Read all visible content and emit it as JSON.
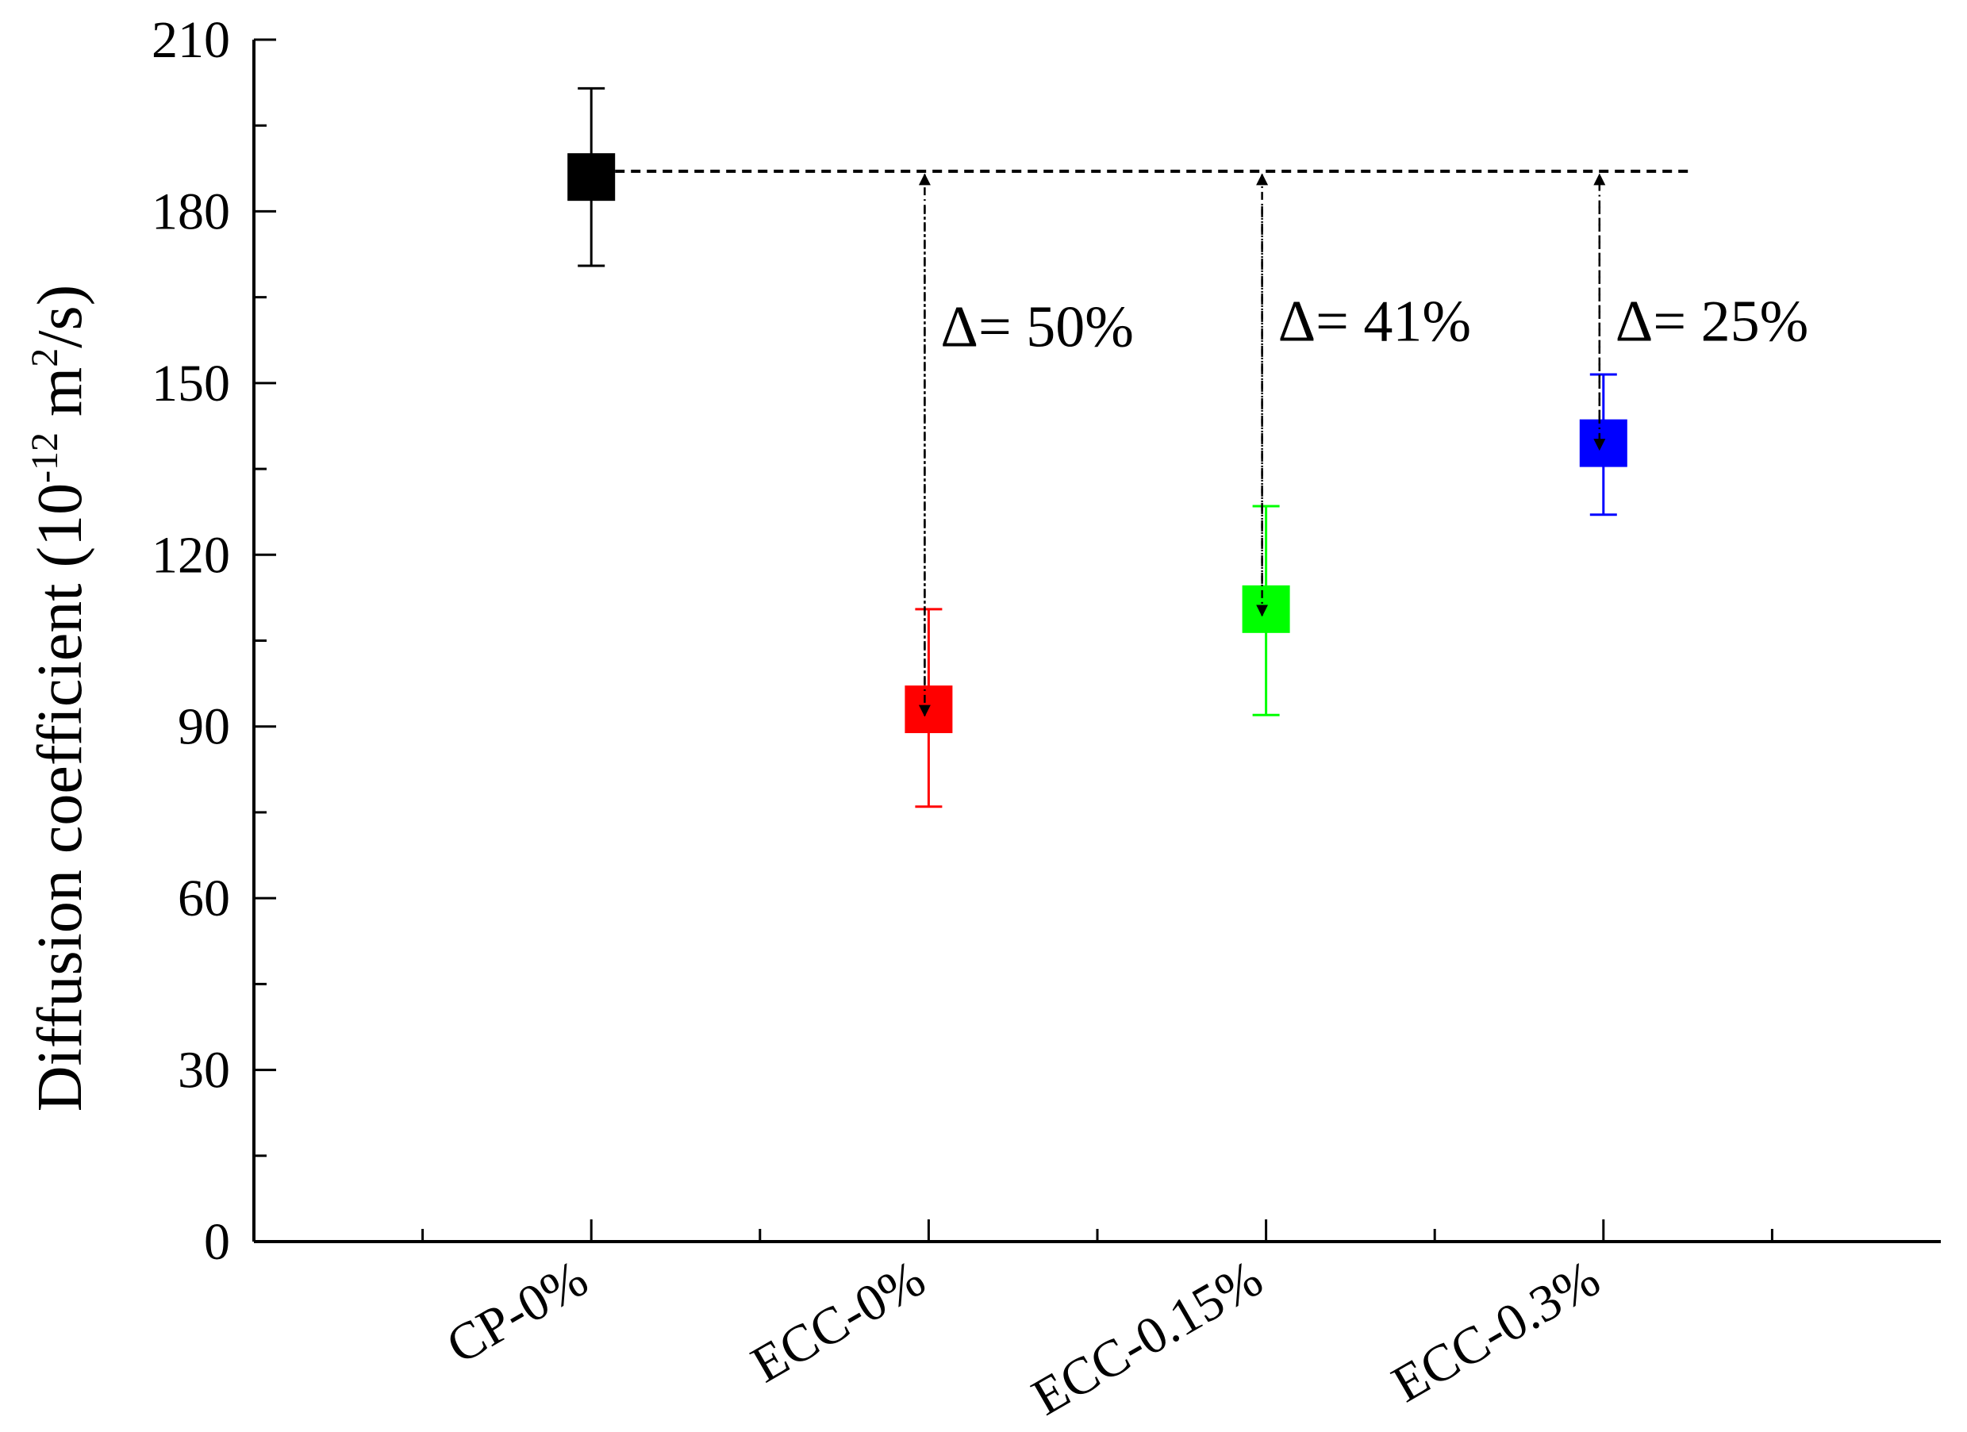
{
  "chart_data": {
    "type": "scatter",
    "title": "",
    "xlabel": "",
    "ylabel": {
      "prefix": "Diffusion coefficient (10",
      "exponent": "-12",
      "middle": " m",
      "exponent2": "2",
      "suffix": "/s)"
    },
    "ylim": [
      0,
      210
    ],
    "yticks": [
      0,
      30,
      60,
      90,
      120,
      150,
      180,
      210
    ],
    "categories": [
      "CP-0%",
      "ECC-0%",
      "ECC-0.15%",
      "ECC-0.3%"
    ],
    "points": [
      {
        "category": "CP-0%",
        "value": 186,
        "err_low": 170.5,
        "err_high": 201.5,
        "color": "#000000"
      },
      {
        "category": "ECC-0%",
        "value": 93,
        "err_low": 76,
        "err_high": 110.5,
        "color": "#ff0000"
      },
      {
        "category": "ECC-0.15%",
        "value": 110.5,
        "err_low": 92,
        "err_high": 128.5,
        "color": "#00ff00"
      },
      {
        "category": "ECC-0.3%",
        "value": 139.5,
        "err_low": 127,
        "err_high": 151.5,
        "color": "#0000ff"
      }
    ],
    "reference_line": {
      "value": 187,
      "style": "dashed",
      "color": "#000000"
    },
    "annotations": [
      {
        "category": "ECC-0%",
        "text": "Δ= 50%",
        "label_y": 160
      },
      {
        "category": "ECC-0.15%",
        "text": "Δ= 41%",
        "label_y": 161
      },
      {
        "category": "ECC-0.3%",
        "text": "Δ= 25%",
        "label_y": 161
      }
    ],
    "grid": false,
    "legend": "none"
  }
}
